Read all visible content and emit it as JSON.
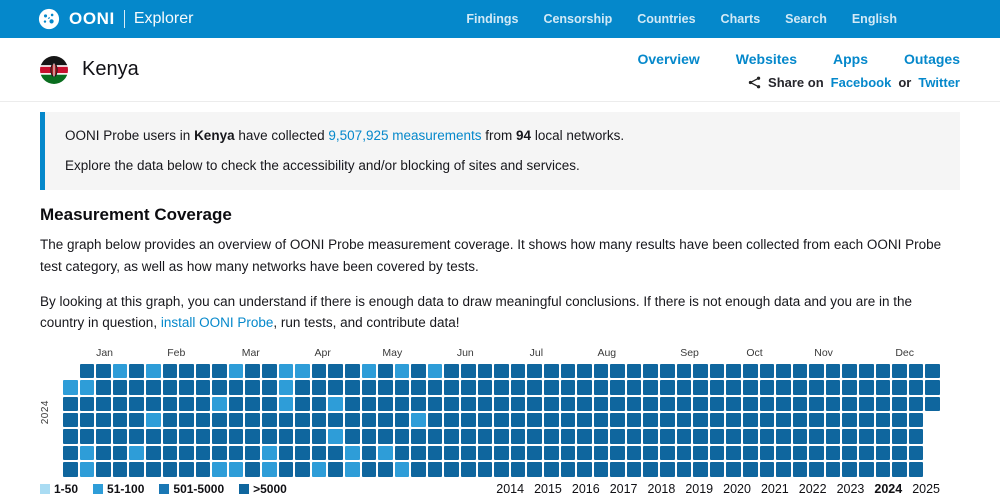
{
  "navbar": {
    "brand": "OONI",
    "brand_sub": "Explorer",
    "items": [
      "Findings",
      "Censorship",
      "Countries",
      "Charts",
      "Search",
      "English"
    ]
  },
  "header": {
    "country": "Kenya",
    "tabs": [
      "Overview",
      "Websites",
      "Apps",
      "Outages"
    ],
    "share": {
      "label": "Share on",
      "facebook": "Facebook",
      "or": "or",
      "twitter": "Twitter"
    }
  },
  "infobox": {
    "p1_start": "OONI Probe users in ",
    "p1_country": "Kenya",
    "p1_mid": " have collected ",
    "p1_link": "9,507,925 measurements",
    "p1_from": " from ",
    "p1_networks": "94",
    "p1_end": " local networks.",
    "p2": "Explore the data below to check the accessibility and/or blocking of sites and services."
  },
  "coverage": {
    "title": "Measurement Coverage",
    "p1": "The graph below provides an overview of OONI Probe measurement coverage. It shows how many results have been collected from each OONI Probe test category, as well as how many networks have been covered by tests.",
    "p2_start": "By looking at this graph, you can understand if there is enough data to draw meaningful conclusions. If there is not enough data and you are in the country in question, ",
    "p2_link": "install OONI Probe",
    "p2_end": ", run tests, and contribute data!"
  },
  "chart_data": {
    "type": "heatmap",
    "title": "Measurement Coverage calendar heatmap",
    "year_label": "2024",
    "description": "Daily OONI measurement counts for Kenya in 2024. Columns are weeks, rows are weekdays (Sun-Sat). Level 4 = >5000 measurements/day (dominant), level 2 = 51-100, 0 = no cell (outside year).",
    "months": [
      {
        "label": "Jan",
        "week": 2.0
      },
      {
        "label": "Feb",
        "week": 6.3
      },
      {
        "label": "Mar",
        "week": 10.8
      },
      {
        "label": "Apr",
        "week": 15.2
      },
      {
        "label": "May",
        "week": 19.3
      },
      {
        "label": "Jun",
        "week": 23.8
      },
      {
        "label": "Jul",
        "week": 28.2
      },
      {
        "label": "Aug",
        "week": 32.3
      },
      {
        "label": "Sep",
        "week": 37.3
      },
      {
        "label": "Oct",
        "week": 41.3
      },
      {
        "label": "Nov",
        "week": 45.4
      },
      {
        "label": "Dec",
        "week": 50.3
      }
    ],
    "levels": [
      {
        "key": "1",
        "label": "1-50",
        "color": "#aadcf3"
      },
      {
        "key": "2",
        "label": "51-100",
        "color": "#2e9dd8"
      },
      {
        "key": "3",
        "label": "501-5000",
        "color": "#1a77b4"
      },
      {
        "key": "4",
        "label": ">5000",
        "color": "#0f669e"
      }
    ],
    "cell_colors": {
      "1": "#aadcf3",
      "2": "#2e9dd8",
      "3": "#1a77b4",
      "4": "#0f669e"
    },
    "rows": [
      "04424244442442244424242444444444444444444444444444444",
      "22444444444442444444444444444444444444444444444444444",
      "44444444424442442444444444444444444444444444444444444",
      "44444244444444444444424444444444444444444444444444440",
      "44444444444444442444444444444444444444444444444444440",
      "42442444444424444242444444444444444444444444444444440",
      "42444444422424424244244444444444444444444444444444440"
    ],
    "years": [
      "2014",
      "2015",
      "2016",
      "2017",
      "2018",
      "2019",
      "2020",
      "2021",
      "2022",
      "2023",
      "2024",
      "2025"
    ],
    "active_year": "2024"
  },
  "colors": {
    "accent": "#0588cb"
  }
}
